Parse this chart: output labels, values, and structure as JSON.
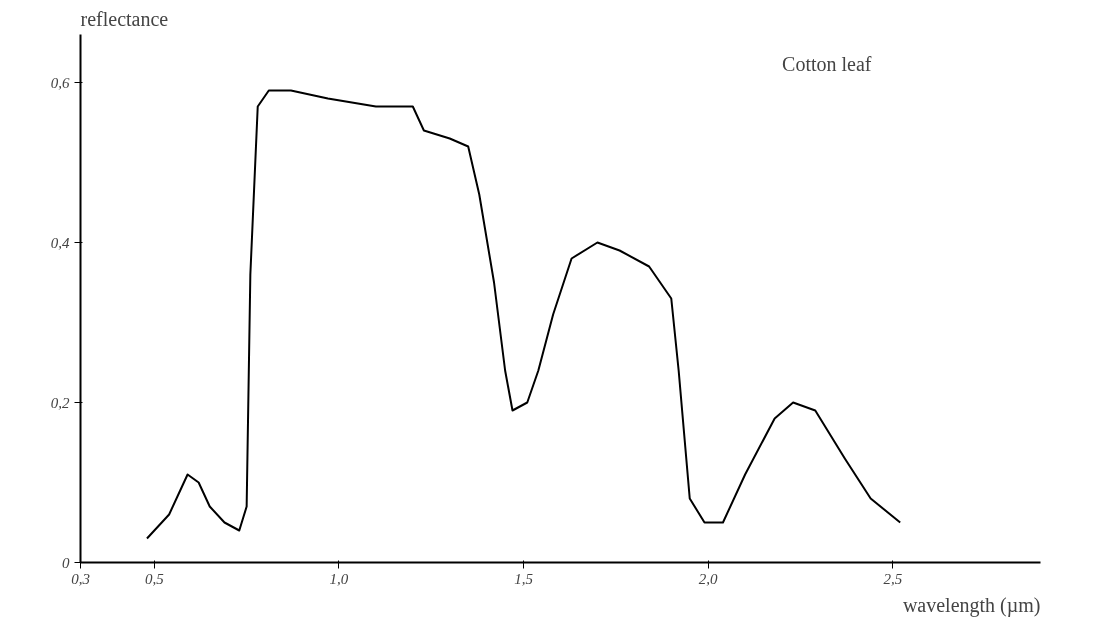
{
  "chart_data": {
    "type": "line",
    "xlabel": "wavelength (µm)",
    "ylabel": "reflectance",
    "annotations": [
      "Cotton leaf"
    ],
    "x": [
      0.48,
      0.54,
      0.57,
      0.59,
      0.62,
      0.65,
      0.69,
      0.73,
      0.75,
      0.76,
      0.78,
      0.81,
      0.87,
      0.97,
      1.1,
      1.2,
      1.23,
      1.3,
      1.35,
      1.38,
      1.42,
      1.45,
      1.47,
      1.51,
      1.54,
      1.58,
      1.63,
      1.7,
      1.76,
      1.84,
      1.9,
      1.92,
      1.95,
      1.99,
      2.04,
      2.1,
      2.18,
      2.23,
      2.29,
      2.37,
      2.44,
      2.52
    ],
    "series": [
      {
        "color": "#000000",
        "values": [
          0.03,
          0.06,
          0.09,
          0.11,
          0.1,
          0.07,
          0.05,
          0.04,
          0.07,
          0.36,
          0.57,
          0.59,
          0.59,
          0.58,
          0.57,
          0.57,
          0.54,
          0.53,
          0.52,
          0.46,
          0.35,
          0.24,
          0.19,
          0.2,
          0.24,
          0.31,
          0.38,
          0.4,
          0.39,
          0.37,
          0.33,
          0.24,
          0.08,
          0.05,
          0.05,
          0.11,
          0.18,
          0.2,
          0.19,
          0.13,
          0.08,
          0.05
        ]
      }
    ],
    "xlim": [
      0.3,
      2.9
    ],
    "ylim": [
      0,
      0.66
    ],
    "xticks": [
      {
        "value": 0.3,
        "label": "0,3"
      },
      {
        "value": 0.5,
        "label": "0,5"
      },
      {
        "value": 1.0,
        "label": "1,0"
      },
      {
        "value": 1.5,
        "label": "1,5"
      },
      {
        "value": 2.0,
        "label": "2,0"
      },
      {
        "value": 2.5,
        "label": "2,5"
      }
    ],
    "yticks": [
      0,
      {
        "value": 0.2,
        "label": "0,2"
      },
      {
        "value": 0.4,
        "label": "0,4"
      },
      {
        "value": 0.6,
        "label": "0,6"
      }
    ],
    "grid": false,
    "marker": "none",
    "line_style": "solid"
  }
}
